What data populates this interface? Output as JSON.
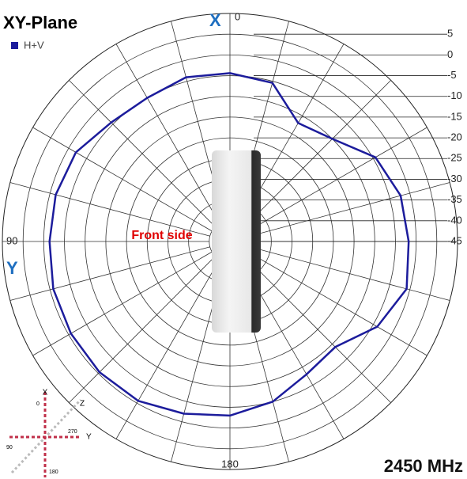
{
  "chart_data": {
    "type": "polar",
    "title": "XY-Plane",
    "theta": [
      0,
      15,
      30,
      45,
      60,
      75,
      90,
      105,
      120,
      135,
      150,
      165,
      180,
      195,
      210,
      225,
      240,
      255,
      270,
      285,
      300,
      315,
      330,
      345
    ],
    "series": [
      {
        "name": "H+V",
        "color": "#1c1c9c",
        "values": [
          -4.4,
          -4,
          -5,
          -4.4,
          -2,
          -1.4,
          -1.4,
          -0.8,
          -0.6,
          -0.4,
          -0.6,
          -2,
          -3,
          -5,
          -8,
          -9,
          -3.9,
          -0.8,
          -1.8,
          -2.3,
          -4.4,
          -10,
          -12,
          -5.4
        ]
      }
    ],
    "rlim": [
      -45,
      10
    ],
    "rticks": [
      5,
      0,
      -5,
      -10,
      -15,
      -20,
      -25,
      -30,
      -35,
      -40,
      -45
    ],
    "angle_ticks": [
      0,
      90,
      180
    ],
    "grid": true,
    "x_axis_label": "X",
    "y_axis_label": "Y",
    "center_label": "Front side",
    "frequency": "2450 MHz",
    "axis_icon": {
      "x": "X",
      "z": "Z",
      "y": "Y",
      "a0": "0",
      "a270": "270",
      "a90": "90",
      "a180": "180"
    }
  }
}
